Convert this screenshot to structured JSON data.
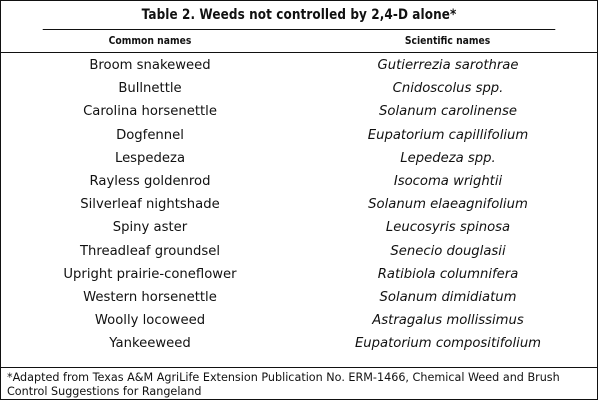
{
  "table": {
    "title": "Table 2. Weeds not controlled by 2,4-D alone*",
    "headers": [
      "Common names",
      "Scientific names"
    ],
    "rows": [
      {
        "common": "Broom snakeweed",
        "scientific": "Gutierrezia sarothrae"
      },
      {
        "common": "Bullnettle",
        "scientific": "Cnidoscolus spp."
      },
      {
        "common": "Carolina horsenettle",
        "scientific": "Solanum carolinense"
      },
      {
        "common": "Dogfennel",
        "scientific": "Eupatorium capillifolium"
      },
      {
        "common": "Lespedeza",
        "scientific": "Lepedeza spp."
      },
      {
        "common": "Rayless goldenrod",
        "scientific": "Isocoma wrightii"
      },
      {
        "common": "Silverleaf nightshade",
        "scientific": "Solanum elaeagnifolium"
      },
      {
        "common": "Spiny aster",
        "scientific": "Leucosyris spinosa"
      },
      {
        "common": "Threadleaf groundsel",
        "scientific": "Senecio douglasii"
      },
      {
        "common": "Upright prairie-coneflower",
        "scientific": "Ratibiola columnifera"
      },
      {
        "common": "Western horsenettle",
        "scientific": "Solanum dimidiatum"
      },
      {
        "common": "Woolly locoweed",
        "scientific": "Astragalus mollissimus"
      },
      {
        "common": "Yankeeweed",
        "scientific": "Eupatorium compositifolium"
      }
    ],
    "footnote": "*Adapted from Texas A&M AgriLife Extension Publication No. ERM-1466, Chemical Weed and Brush Control Suggestions for Rangeland"
  }
}
